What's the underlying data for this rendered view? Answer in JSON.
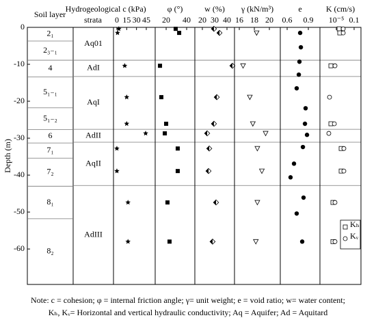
{
  "y_axis": {
    "label": "Depth (m)",
    "ylim": [
      0,
      -69.6
    ],
    "yticks": [
      0,
      -10,
      -20,
      -30,
      -40,
      -50,
      -60
    ]
  },
  "soil_layer": {
    "title": "Soil layer",
    "layers": [
      "2₁",
      "2₃₋₁",
      "4",
      "5₁₋₁",
      "5₁₋₂",
      "6",
      "7₁",
      "7₂",
      "8₁",
      "8₂"
    ],
    "boundaries": [
      -3.7,
      -8.9,
      -13.4,
      -21.8,
      -27.7,
      -31.3,
      -35.4,
      -43,
      -51.8
    ]
  },
  "strata": {
    "title": [
      "Hydrogeological",
      "strata"
    ],
    "layers": [
      "Aq01",
      "AdI",
      "AqI",
      "AdII",
      "AqII",
      "AdIII"
    ],
    "boundaries": [
      -8.9,
      -13.3,
      -27.6,
      -31.1,
      -42.8
    ]
  },
  "chart_data": [
    {
      "type": "scatter",
      "xlabel": "c (kPa)",
      "xlim": [
        -5.2,
        58.6
      ],
      "xticks": [
        0,
        15,
        30,
        45
      ],
      "series": [
        {
          "marker": "star",
          "color": "#000",
          "x": [
            3,
            1,
            12,
            15,
            15,
            44,
            0,
            0,
            17,
            17
          ],
          "y": [
            -0.4,
            -1.5,
            -10.4,
            -18.9,
            -26.1,
            -28.7,
            -32.8,
            -38.9,
            -47.4,
            -58
          ]
        }
      ]
    },
    {
      "type": "scatter",
      "xlabel": "φ (°)",
      "xlim": [
        9.3,
        48
      ],
      "xticks": [
        20,
        40
      ],
      "series": [
        {
          "marker": "square-filled",
          "color": "#000",
          "x": [
            29.3,
            32.7,
            14,
            15.3,
            20,
            18.7,
            31.3,
            31.3,
            21.3,
            23.3
          ],
          "y": [
            -0.4,
            -1.5,
            -10.4,
            -18.9,
            -26.1,
            -28.7,
            -32.8,
            -38.9,
            -47.4,
            -58
          ]
        }
      ]
    },
    {
      "type": "scatter",
      "xlabel": "w (%)",
      "xlim": [
        13.9,
        46.1
      ],
      "xticks": [
        20,
        30,
        40
      ],
      "series": [
        {
          "marker": "half-diamond",
          "color": "#000",
          "x": [
            29.4,
            33.9,
            44.4,
            31.7,
            29.4,
            23.9,
            25.6,
            25,
            31.1,
            28.3
          ],
          "y": [
            -0.4,
            -1.5,
            -10.4,
            -18.9,
            -26.1,
            -28.7,
            -32.8,
            -38.9,
            -47.4,
            -58
          ]
        }
      ]
    },
    {
      "type": "scatter",
      "xlabel": "γ (kN/m³)",
      "xlim": [
        15.36,
        21.45
      ],
      "xticks": [
        16,
        18,
        20
      ],
      "series": [
        {
          "marker": "triangle-down-open",
          "color": "#000",
          "x": [
            18.3,
            16.5,
            17.4,
            17.8,
            19.5,
            18.4,
            19,
            18.4,
            18.2
          ],
          "y": [
            -1.5,
            -10.4,
            -18.9,
            -26.1,
            -28.7,
            -32.8,
            -38.9,
            -47.4,
            -58
          ]
        }
      ]
    },
    {
      "type": "scatter",
      "xlabel": "e",
      "xlim": [
        0.503,
        1.064
      ],
      "xticks": [
        0.6,
        0.9
      ],
      "series": [
        {
          "marker": "circle-filled",
          "color": "#000",
          "x": [
            0.784,
            0.794,
            0.774,
            0.765,
            0.735,
            0.861,
            0.852,
            0.881,
            0.823,
            0.697,
            0.648,
            0.832,
            0.735,
            0.813
          ],
          "y": [
            -1.5,
            -5.4,
            -9.3,
            -12.8,
            -16.5,
            -21.9,
            -26.1,
            -29.1,
            -32.4,
            -36.9,
            -40.6,
            -46.1,
            -50.4,
            -58
          ]
        }
      ]
    },
    {
      "type": "scatter",
      "xlabel": "K (cm/s)",
      "log_x": true,
      "xlim": [
        2e-09,
        3.5
      ],
      "xticks": [
        {
          "value": 1e-05,
          "label": "10⁻⁵"
        },
        0.1
      ],
      "series": [
        {
          "name": "Kₕ",
          "marker": "square-open",
          "color": "#000",
          "x": [
            4.2e-05,
            5.9e-05,
            5.9e-07,
            5.9e-07,
            0.00012,
            0.00012,
            1.7e-06,
            1.7e-06
          ],
          "y": [
            -0.4,
            -1.5,
            -10.4,
            -26.1,
            -32.8,
            -38.9,
            -47.4,
            -58
          ]
        },
        {
          "name": "Kᵥ",
          "marker": "circle-open",
          "color": "#000",
          "x": [
            0.00035,
            0.00035,
            4.9e-06,
            2.9e-07,
            3.5e-06,
            2e-07,
            0.00049,
            0.00049,
            4.9e-06,
            4.9e-06
          ],
          "y": [
            -0.4,
            -1.5,
            -10.4,
            -18.9,
            -26.1,
            -28.7,
            -32.8,
            -38.9,
            -47.4,
            -58
          ]
        }
      ]
    }
  ],
  "note": [
    "Note: c = cohesion; φ = internal friction angle; γ= unit weight; e = void ratio; w= water content;",
    "Kₕ, Kᵥ= Horizontal and vertical hydraulic conductivity; Aq = Aquifer; Ad = Aquitard"
  ]
}
